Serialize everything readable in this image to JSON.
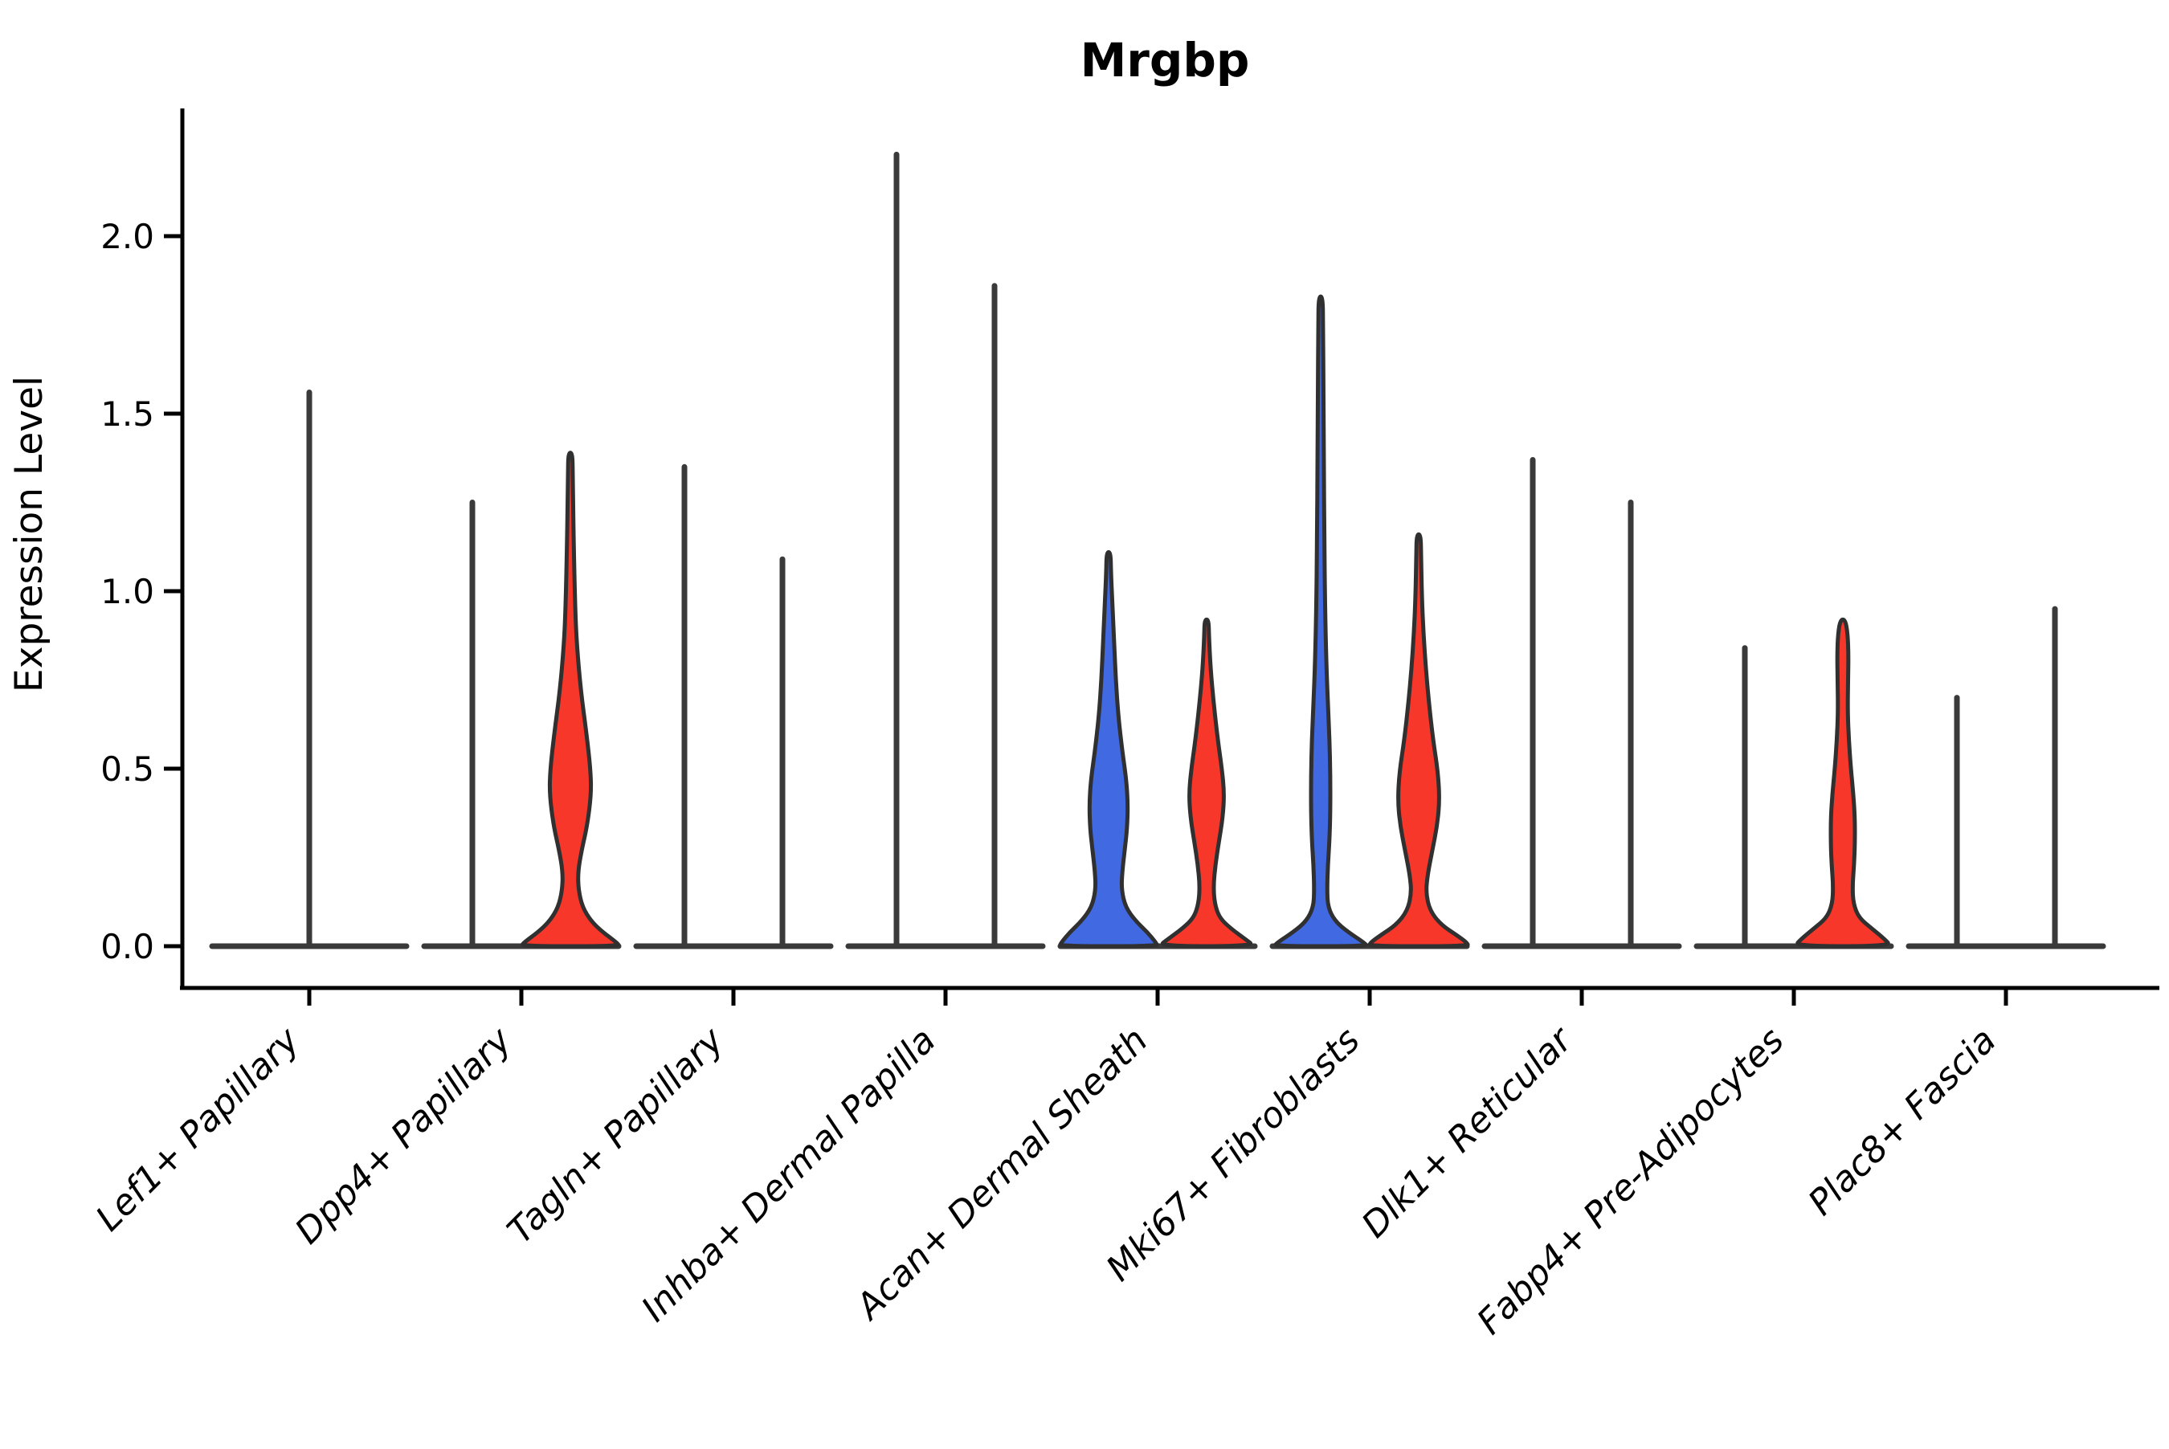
{
  "title": "Mrgbp",
  "axes": {
    "ylabel": "Expression Level"
  },
  "colors": {
    "background": "#FFFFFF",
    "axis": "#000000",
    "violin_outline": "#303030",
    "zero_line": "#3A3A3A",
    "blue_fill": "#4169E1",
    "red_fill": "#F8372B",
    "text": "#000000"
  },
  "chart_data": {
    "type": "violin",
    "title": "Mrgbp",
    "xlabel": "",
    "ylabel": "Expression Level",
    "ylim": [
      -0.12,
      2.37
    ],
    "yticks": [
      0,
      0.5,
      1.0,
      1.5,
      2.0
    ],
    "ytick_labels": [
      "0.0",
      "0.5",
      "1.0",
      "1.5",
      "2.0"
    ],
    "x_tick_rotation": 45,
    "grid": "off",
    "legend_position": "none",
    "split_violin": true,
    "split_colors": {
      "left": "#4169E1",
      "right": "#F8372B"
    },
    "categories": [
      "Lef1+ Papillary",
      "Dpp4+ Papillary",
      "Tagln+ Papillary",
      "Inhba+ Dermal Papilla",
      "Acan+ Dermal Sheath",
      "Mki67+ Fibroblasts",
      "Dlk1+ Reticular",
      "Fabp4+ Pre-Adipocytes",
      "Plac8+ Fascia"
    ],
    "groups": [
      {
        "label": "Lef1+ Papillary",
        "violins": [
          {
            "side": "single",
            "color": null,
            "max": 1.56,
            "bulk_at_zero": true
          }
        ]
      },
      {
        "label": "Dpp4+ Papillary",
        "violins": [
          {
            "side": "left",
            "color": null,
            "max": 1.25,
            "bulk_at_zero": true
          },
          {
            "side": "right",
            "color": "#F8372B",
            "max": 1.39,
            "bulk_at_zero": true,
            "profile": [
              [
                1.39,
                2.5
              ],
              [
                1.33,
                3
              ],
              [
                1.15,
                4
              ],
              [
                0.95,
                6
              ],
              [
                0.85,
                8
              ],
              [
                0.72,
                13
              ],
              [
                0.6,
                20
              ],
              [
                0.5,
                25
              ],
              [
                0.43,
                26
              ],
              [
                0.34,
                21
              ],
              [
                0.27,
                14
              ],
              [
                0.21,
                9.5
              ],
              [
                0.16,
                10
              ],
              [
                0.11,
                15
              ],
              [
                0.07,
                26
              ],
              [
                0.04,
                40
              ],
              [
                0.01,
                58
              ],
              [
                0,
                61
              ]
            ]
          }
        ]
      },
      {
        "label": "Tagln+ Papillary",
        "violins": [
          {
            "side": "left",
            "color": null,
            "max": 1.35,
            "bulk_at_zero": true
          },
          {
            "side": "right",
            "color": null,
            "max": 1.09,
            "bulk_at_zero": true
          }
        ]
      },
      {
        "label": "Inhba+ Dermal Papilla",
        "violins": [
          {
            "side": "left",
            "color": null,
            "max": 2.23,
            "bulk_at_zero": true
          },
          {
            "side": "right",
            "color": null,
            "max": 1.86,
            "bulk_at_zero": true
          }
        ]
      },
      {
        "label": "Acan+ Dermal Sheath",
        "violins": [
          {
            "side": "left",
            "color": "#4169E1",
            "max": 1.11,
            "bulk_at_zero": true,
            "profile": [
              [
                1.11,
                2.5
              ],
              [
                1.05,
                3
              ],
              [
                0.95,
                5
              ],
              [
                0.85,
                7
              ],
              [
                0.75,
                9
              ],
              [
                0.65,
                12
              ],
              [
                0.55,
                17
              ],
              [
                0.47,
                22
              ],
              [
                0.4,
                24
              ],
              [
                0.33,
                23
              ],
              [
                0.27,
                20
              ],
              [
                0.21,
                17
              ],
              [
                0.16,
                16
              ],
              [
                0.11,
                21
              ],
              [
                0.07,
                34
              ],
              [
                0.04,
                48
              ],
              [
                0.01,
                59
              ],
              [
                0,
                61
              ]
            ]
          },
          {
            "side": "right",
            "color": "#F8372B",
            "max": 0.92,
            "bulk_at_zero": true,
            "profile": [
              [
                0.92,
                2.5
              ],
              [
                0.87,
                3
              ],
              [
                0.78,
                5
              ],
              [
                0.68,
                9
              ],
              [
                0.58,
                14
              ],
              [
                0.5,
                19
              ],
              [
                0.43,
                22
              ],
              [
                0.36,
                20
              ],
              [
                0.29,
                15
              ],
              [
                0.23,
                11
              ],
              [
                0.17,
                8.5
              ],
              [
                0.12,
                10
              ],
              [
                0.08,
                16
              ],
              [
                0.05,
                30
              ],
              [
                0.02,
                48
              ],
              [
                0,
                60
              ]
            ]
          }
        ]
      },
      {
        "label": "Mki67+ Fibroblasts",
        "violins": [
          {
            "side": "left",
            "color": "#4169E1",
            "max": 1.83,
            "bulk_at_zero": true,
            "profile": [
              [
                1.83,
                2.5
              ],
              [
                1.75,
                3
              ],
              [
                1.55,
                3.5
              ],
              [
                1.35,
                4
              ],
              [
                1.15,
                4.5
              ],
              [
                0.95,
                5.5
              ],
              [
                0.8,
                7
              ],
              [
                0.68,
                9
              ],
              [
                0.58,
                11
              ],
              [
                0.48,
                12
              ],
              [
                0.38,
                12
              ],
              [
                0.3,
                11
              ],
              [
                0.23,
                9
              ],
              [
                0.16,
                8
              ],
              [
                0.11,
                9
              ],
              [
                0.07,
                18
              ],
              [
                0.04,
                34
              ],
              [
                0.01,
                54
              ],
              [
                0,
                58
              ]
            ]
          },
          {
            "side": "right",
            "color": "#F8372B",
            "max": 1.16,
            "bulk_at_zero": true,
            "profile": [
              [
                1.16,
                2.5
              ],
              [
                1.1,
                3
              ],
              [
                0.98,
                4
              ],
              [
                0.88,
                6
              ],
              [
                0.78,
                9
              ],
              [
                0.68,
                13
              ],
              [
                0.58,
                18
              ],
              [
                0.49,
                24
              ],
              [
                0.41,
                26
              ],
              [
                0.34,
                23
              ],
              [
                0.27,
                17
              ],
              [
                0.2,
                11
              ],
              [
                0.15,
                9
              ],
              [
                0.1,
                14
              ],
              [
                0.06,
                28
              ],
              [
                0.03,
                48
              ],
              [
                0.01,
                60
              ],
              [
                0,
                62
              ]
            ]
          }
        ]
      },
      {
        "label": "Dlk1+ Reticular",
        "violins": [
          {
            "side": "left",
            "color": null,
            "max": 1.37,
            "bulk_at_zero": true
          },
          {
            "side": "right",
            "color": null,
            "max": 1.25,
            "bulk_at_zero": true
          }
        ]
      },
      {
        "label": "Fabp4+ Pre-Adipocytes",
        "violins": [
          {
            "side": "left",
            "color": null,
            "max": 0.84,
            "bulk_at_zero": true
          },
          {
            "side": "right",
            "color": "#F8372B",
            "max": 0.92,
            "bulk_at_zero": true,
            "profile": [
              [
                0.92,
                3
              ],
              [
                0.88,
                6
              ],
              [
                0.82,
                7
              ],
              [
                0.75,
                6.5
              ],
              [
                0.66,
                6
              ],
              [
                0.58,
                7.5
              ],
              [
                0.5,
                10
              ],
              [
                0.43,
                13
              ],
              [
                0.36,
                15
              ],
              [
                0.29,
                15
              ],
              [
                0.23,
                14
              ],
              [
                0.17,
                12
              ],
              [
                0.12,
                13
              ],
              [
                0.08,
                20
              ],
              [
                0.05,
                36
              ],
              [
                0.02,
                52
              ],
              [
                0,
                60
              ]
            ]
          }
        ]
      },
      {
        "label": "Plac8+ Fascia",
        "violins": [
          {
            "side": "left",
            "color": null,
            "max": 0.7,
            "bulk_at_zero": true
          },
          {
            "side": "right",
            "color": null,
            "max": 0.95,
            "bulk_at_zero": true
          }
        ]
      }
    ]
  }
}
